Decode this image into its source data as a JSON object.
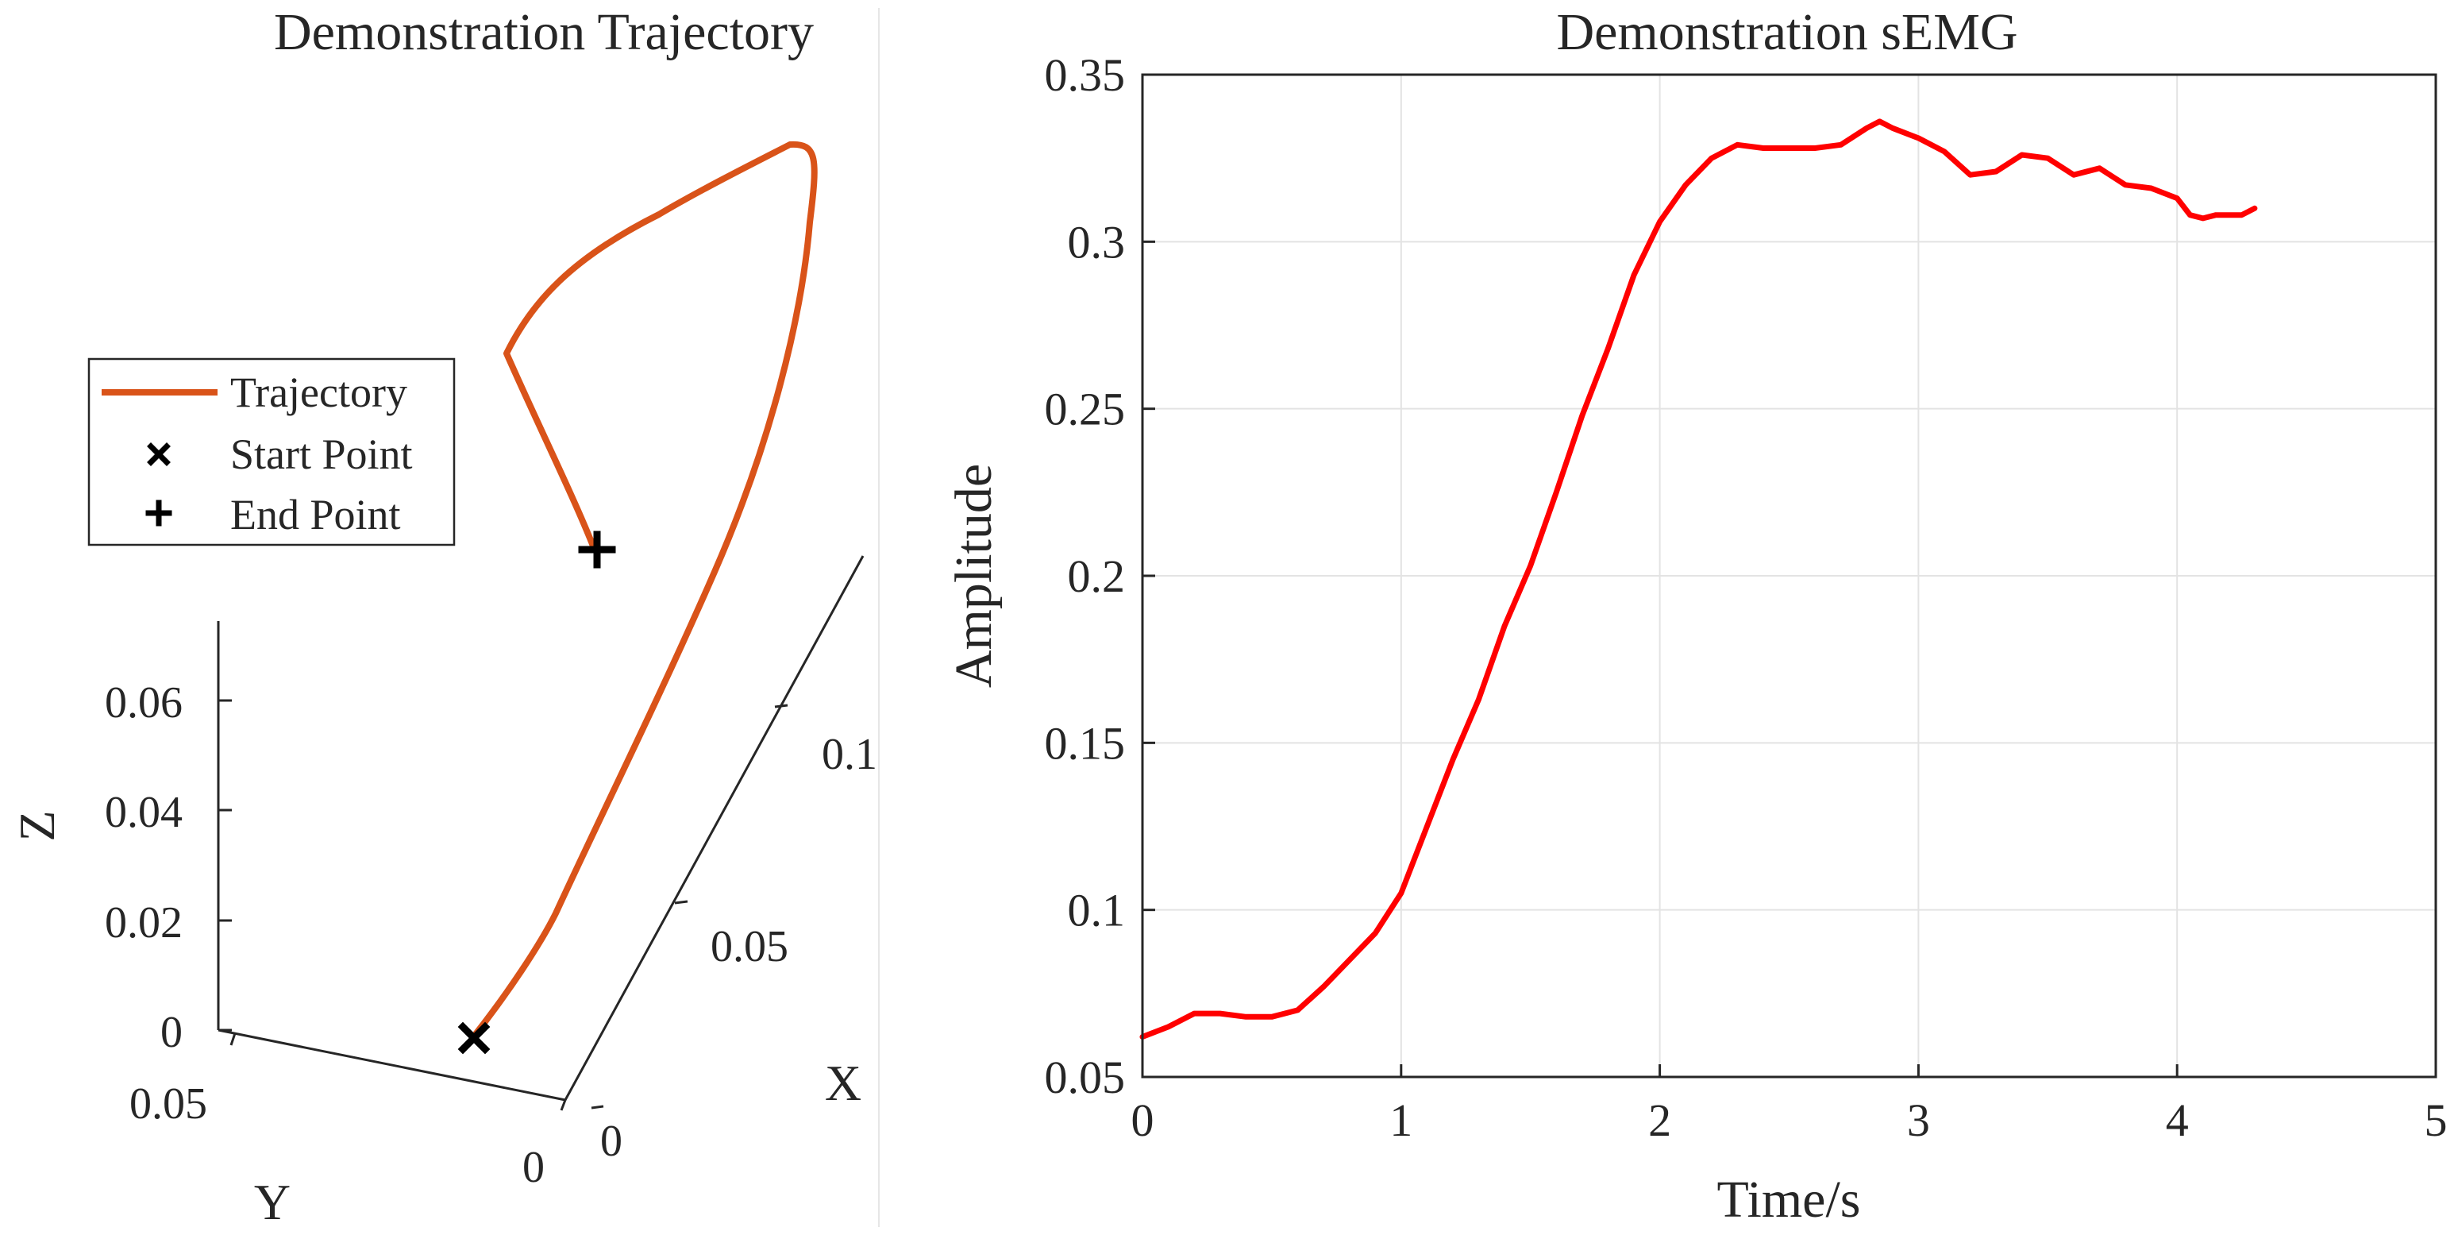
{
  "chart_data": [
    {
      "type": "line3d",
      "title": "Demonstration Trajectory",
      "xlabel": "X",
      "ylabel": "Y",
      "zlabel": "Z",
      "x_ticks": [
        "0",
        "0.05",
        "0.1"
      ],
      "y_ticks": [
        "0",
        "0.05"
      ],
      "z_ticks": [
        "0",
        "0.02",
        "0.04",
        "0.06"
      ],
      "legend": {
        "position": "upper-left",
        "entries": [
          {
            "label": "Trajectory",
            "marker": "line"
          },
          {
            "label": "Start Point",
            "marker": "x"
          },
          {
            "label": "End Point",
            "marker": "+"
          }
        ]
      },
      "series": [
        {
          "name": "Trajectory",
          "color": "#D95319"
        }
      ]
    },
    {
      "type": "line",
      "title": "Demonstration sEMG",
      "xlabel": "Time/s",
      "ylabel": "Amplitude",
      "xlim": [
        0,
        5
      ],
      "ylim": [
        0.05,
        0.35
      ],
      "x_ticks": [
        "0",
        "1",
        "2",
        "3",
        "4",
        "5"
      ],
      "y_ticks": [
        "0.05",
        "0.1",
        "0.15",
        "0.2",
        "0.25",
        "0.3",
        "0.35"
      ],
      "grid": true,
      "series": [
        {
          "name": "sEMG",
          "color": "#FF0000",
          "x": [
            0,
            0.1,
            0.2,
            0.3,
            0.4,
            0.5,
            0.6,
            0.7,
            0.8,
            0.9,
            1.0,
            1.1,
            1.2,
            1.3,
            1.4,
            1.5,
            1.6,
            1.7,
            1.8,
            1.9,
            2.0,
            2.1,
            2.2,
            2.3,
            2.4,
            2.5,
            2.6,
            2.7,
            2.8,
            2.85,
            2.9,
            3.0,
            3.1,
            3.2,
            3.3,
            3.4,
            3.5,
            3.6,
            3.7,
            3.8,
            3.9,
            4.0,
            4.05,
            4.1,
            4.15,
            4.2,
            4.25,
            4.3
          ],
          "y": [
            0.062,
            0.065,
            0.069,
            0.069,
            0.068,
            0.068,
            0.07,
            0.077,
            0.085,
            0.093,
            0.105,
            0.125,
            0.145,
            0.163,
            0.185,
            0.203,
            0.225,
            0.248,
            0.268,
            0.29,
            0.306,
            0.317,
            0.325,
            0.329,
            0.328,
            0.328,
            0.328,
            0.329,
            0.334,
            0.336,
            0.334,
            0.331,
            0.327,
            0.32,
            0.321,
            0.326,
            0.325,
            0.32,
            0.322,
            0.317,
            0.316,
            0.313,
            0.308,
            0.307,
            0.308,
            0.308,
            0.308,
            0.31
          ]
        }
      ]
    }
  ]
}
